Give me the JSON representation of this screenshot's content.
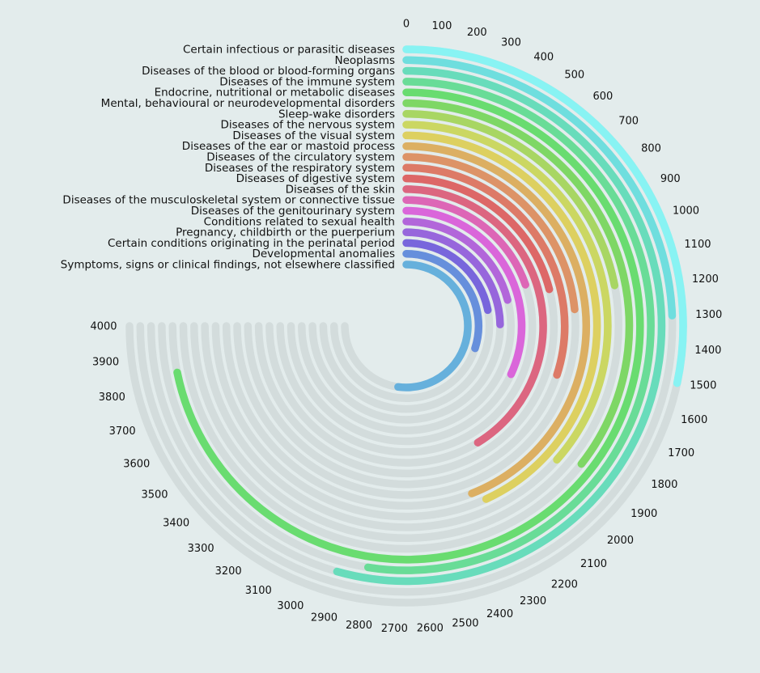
{
  "chart_data": {
    "type": "radial-bar",
    "title": "",
    "max": 4000,
    "track_color": "#d3dcdc",
    "ticks": [
      0,
      100,
      200,
      300,
      400,
      500,
      600,
      700,
      800,
      900,
      1000,
      1100,
      1200,
      1300,
      1400,
      1500,
      1600,
      1700,
      1800,
      1900,
      2000,
      2100,
      2200,
      2300,
      2400,
      2500,
      2600,
      2700,
      2800,
      2900,
      3000,
      3100,
      3200,
      3300,
      3400,
      3500,
      3600,
      3700,
      3800,
      3900,
      4000
    ],
    "categories": [
      "Certain infectious or parasitic diseases",
      "Neoplasms",
      "Diseases of the blood or blood-forming organs",
      "Diseases of the immune system",
      "Endocrine, nutritional or metabolic diseases",
      "Mental, behavioural or neurodevelopmental disorders",
      "Sleep-wake disorders",
      "Diseases of the nervous system",
      "Diseases of the visual system",
      "Diseases of the ear or mastoid process",
      "Diseases of the circulatory system",
      "Diseases of the respiratory system",
      "Diseases of digestive system",
      "Diseases of the skin",
      "Diseases of the musculoskeletal system or connective tissue",
      "Diseases of the genitourinary system",
      "Conditions related to sexual health",
      "Pregnancy, childbirth or the puerperium",
      "Certain conditions originating in the perinatal period",
      "Developmental anomalies",
      "Symptoms, signs or clinical findings, not elsewhere classified"
    ],
    "values": [
      1510,
      1300,
      2900,
      2800,
      3830,
      1900,
      1170,
      1950,
      2300,
      2350,
      1250,
      1600,
      1120,
      2200,
      1050,
      1700,
      1120,
      1320,
      1170,
      1600,
      2780
    ],
    "colors": [
      "#88f3f3",
      "#6fdede",
      "#68dcbb",
      "#69dc97",
      "#69dc70",
      "#7ed765",
      "#a8d663",
      "#cbd762",
      "#ddd060",
      "#dcaf62",
      "#dd9367",
      "#dd7a67",
      "#dd6767",
      "#dc6680",
      "#dd66b6",
      "#da66da",
      "#b266da",
      "#9766dc",
      "#7866dc",
      "#668fdc",
      "#66b0dc"
    ]
  }
}
